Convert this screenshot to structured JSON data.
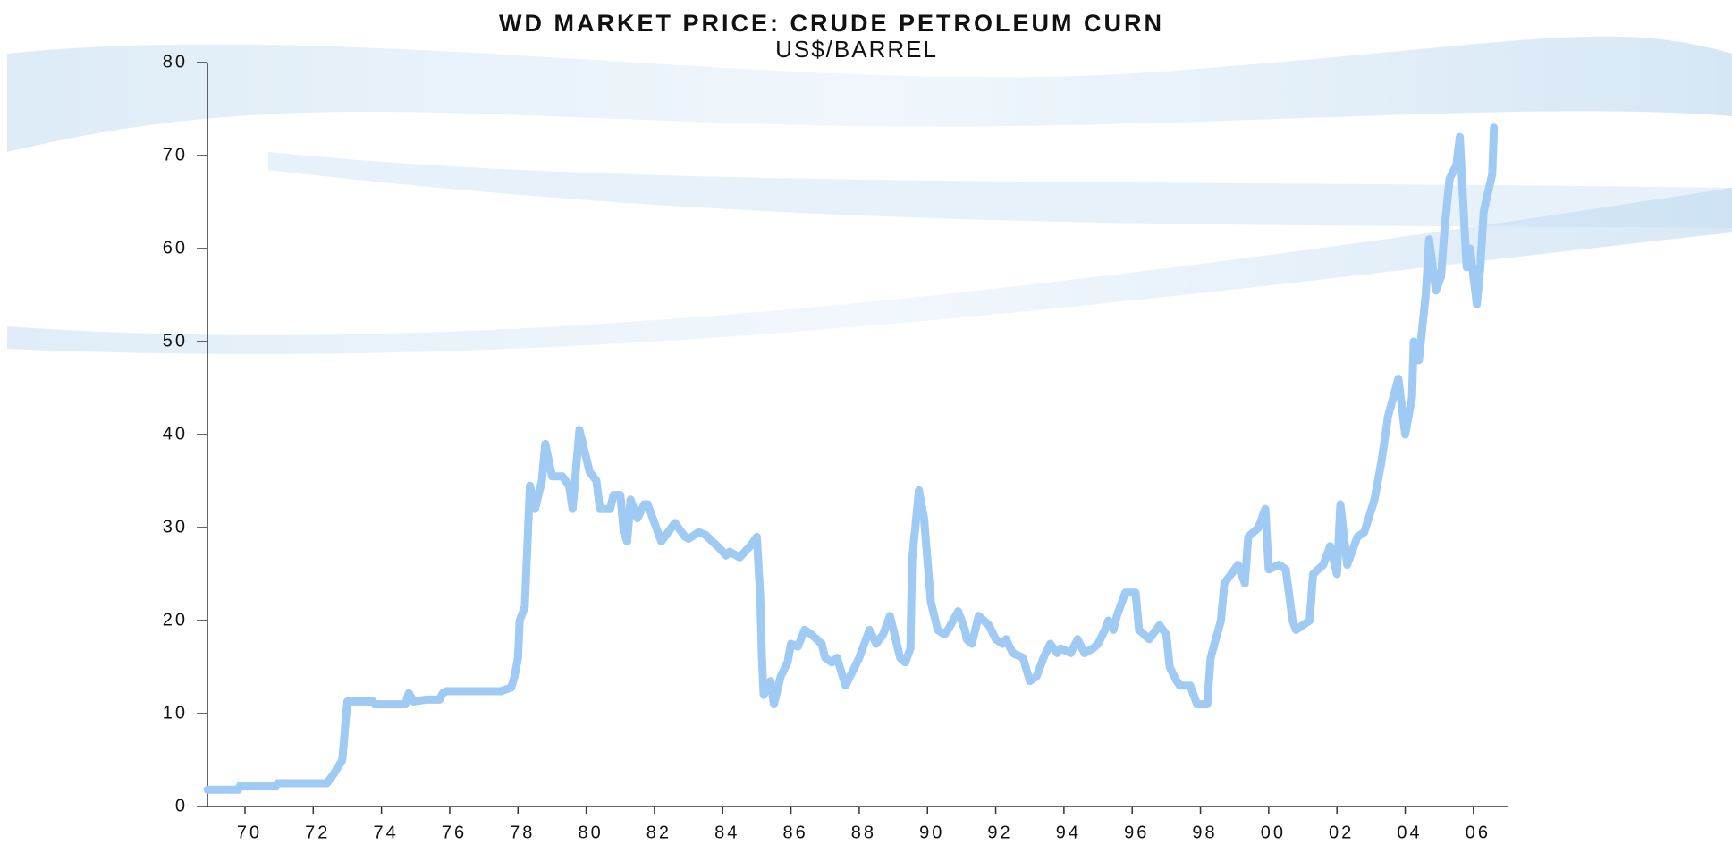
{
  "chart_data": {
    "type": "line",
    "title": "WD MARKET PRICE: CRUDE PETROLEUM CURN",
    "subtitle": "US$/BARREL",
    "color": "#9fcaf4",
    "xlim": [
      1968.9,
      2007.0
    ],
    "ylim": [
      0,
      80
    ],
    "yticks": [
      0,
      10,
      20,
      30,
      40,
      50,
      60,
      70,
      80
    ],
    "xticks": [
      {
        "value": 1970,
        "label": "70"
      },
      {
        "value": 1972,
        "label": "72"
      },
      {
        "value": 1974,
        "label": "74"
      },
      {
        "value": 1976,
        "label": "76"
      },
      {
        "value": 1978,
        "label": "78"
      },
      {
        "value": 1980,
        "label": "80"
      },
      {
        "value": 1982,
        "label": "82"
      },
      {
        "value": 1984,
        "label": "84"
      },
      {
        "value": 1986,
        "label": "86"
      },
      {
        "value": 1988,
        "label": "88"
      },
      {
        "value": 1990,
        "label": "90"
      },
      {
        "value": 1992,
        "label": "92"
      },
      {
        "value": 1994,
        "label": "94"
      },
      {
        "value": 1996,
        "label": "96"
      },
      {
        "value": 1998,
        "label": "98"
      },
      {
        "value": 2000,
        "label": "00"
      },
      {
        "value": 2002,
        "label": "02"
      },
      {
        "value": 2004,
        "label": "04"
      },
      {
        "value": 2006,
        "label": "06"
      }
    ],
    "x": [
      1968.9,
      1969.8,
      1969.85,
      1970.9,
      1970.95,
      1972.4,
      1972.6,
      1972.85,
      1973.0,
      1973.75,
      1973.8,
      1974.7,
      1974.8,
      1974.95,
      1975.3,
      1975.7,
      1975.8,
      1975.9,
      1977.5,
      1977.8,
      1977.9,
      1978.0,
      1978.05,
      1978.2,
      1978.35,
      1978.5,
      1978.7,
      1978.8,
      1979.0,
      1979.3,
      1979.5,
      1979.6,
      1979.8,
      1979.9,
      1980.1,
      1980.3,
      1980.4,
      1980.7,
      1980.8,
      1981.0,
      1981.1,
      1981.2,
      1981.3,
      1981.5,
      1981.7,
      1981.8,
      1982.0,
      1982.1,
      1982.2,
      1982.4,
      1982.6,
      1982.9,
      1983.0,
      1983.3,
      1983.5,
      1983.7,
      1983.9,
      1984.1,
      1984.2,
      1984.5,
      1984.8,
      1985.0,
      1985.1,
      1985.15,
      1985.2,
      1985.4,
      1985.5,
      1985.7,
      1985.9,
      1986.0,
      1986.2,
      1986.4,
      1986.6,
      1986.9,
      1987.0,
      1987.2,
      1987.35,
      1987.6,
      1987.8,
      1988.0,
      1988.15,
      1988.3,
      1988.5,
      1988.7,
      1988.9,
      1989.2,
      1989.35,
      1989.5,
      1989.55,
      1989.75,
      1989.9,
      1990.0,
      1990.1,
      1990.3,
      1990.5,
      1990.6,
      1990.9,
      1991.1,
      1991.15,
      1991.3,
      1991.5,
      1991.8,
      1992.0,
      1992.2,
      1992.3,
      1992.5,
      1992.8,
      1993.0,
      1993.2,
      1993.4,
      1993.6,
      1993.8,
      1993.9,
      1994.2,
      1994.4,
      1994.6,
      1994.85,
      1995.0,
      1995.2,
      1995.3,
      1995.45,
      1995.55,
      1995.8,
      1996.1,
      1996.2,
      1996.5,
      1996.8,
      1997.0,
      1997.1,
      1997.3,
      1997.4,
      1997.7,
      1997.9,
      1998.2,
      1998.3,
      1998.6,
      1998.7,
      1999.1,
      1999.3,
      1999.4,
      1999.7,
      1999.9,
      2000.0,
      2000.3,
      2000.5,
      2000.7,
      2000.8,
      2001.2,
      2001.3,
      2001.6,
      2001.8,
      2002.0,
      2002.1,
      2002.3,
      2002.6,
      2002.8,
      2003.1,
      2003.3,
      2003.5,
      2003.8,
      2004.0,
      2004.2,
      2004.25,
      2004.4,
      2004.6,
      2004.7,
      2004.9,
      2005.05,
      2005.15,
      2005.3,
      2005.5,
      2005.6,
      2005.8,
      2005.9,
      2006.1,
      2006.2,
      2006.3,
      2006.55,
      2006.6
    ],
    "values": [
      1.8,
      1.8,
      2.2,
      2.2,
      2.5,
      2.5,
      3.5,
      5,
      11.3,
      11.3,
      11,
      11,
      12.2,
      11.3,
      11.5,
      11.5,
      12.2,
      12.4,
      12.4,
      12.8,
      14,
      16,
      20,
      21.5,
      34.5,
      32,
      35,
      39,
      35.5,
      35.5,
      34.5,
      32,
      40.5,
      39,
      36,
      35,
      32,
      32,
      33.5,
      33.5,
      29.5,
      28.5,
      33,
      31,
      32.5,
      32.5,
      30.5,
      29.5,
      28.5,
      29.5,
      30.5,
      29,
      28.8,
      29.5,
      29.2,
      28.5,
      27.8,
      27,
      27.4,
      26.8,
      28,
      29,
      22.5,
      16,
      12,
      13.5,
      11,
      14,
      15.5,
      17.5,
      17.2,
      19,
      18.5,
      17.5,
      16,
      15.5,
      16,
      13,
      14.5,
      16,
      17.5,
      19,
      17.5,
      18.5,
      20.5,
      16,
      15.5,
      17,
      26.5,
      34,
      31,
      26.5,
      22,
      19,
      18.5,
      19,
      21,
      19,
      18,
      17.5,
      20.5,
      19.5,
      18,
      17.5,
      18,
      16.5,
      16,
      13.5,
      14,
      16,
      17.5,
      16.5,
      17,
      16.5,
      18,
      16.5,
      17,
      17.5,
      19,
      20,
      19,
      20.5,
      23,
      23,
      19,
      18,
      19.5,
      18.5,
      15,
      13.5,
      13,
      13,
      11,
      11,
      16,
      20,
      24,
      26,
      24,
      29,
      30,
      32,
      25.5,
      26,
      25.5,
      20,
      19,
      20,
      25,
      26,
      28,
      25,
      32.5,
      26,
      29,
      29.5,
      33,
      37,
      42,
      46,
      40,
      44,
      50,
      48,
      55,
      61,
      55.5,
      57,
      62,
      67.5,
      69,
      72,
      58,
      60,
      54,
      58,
      64,
      68,
      73
    ]
  }
}
